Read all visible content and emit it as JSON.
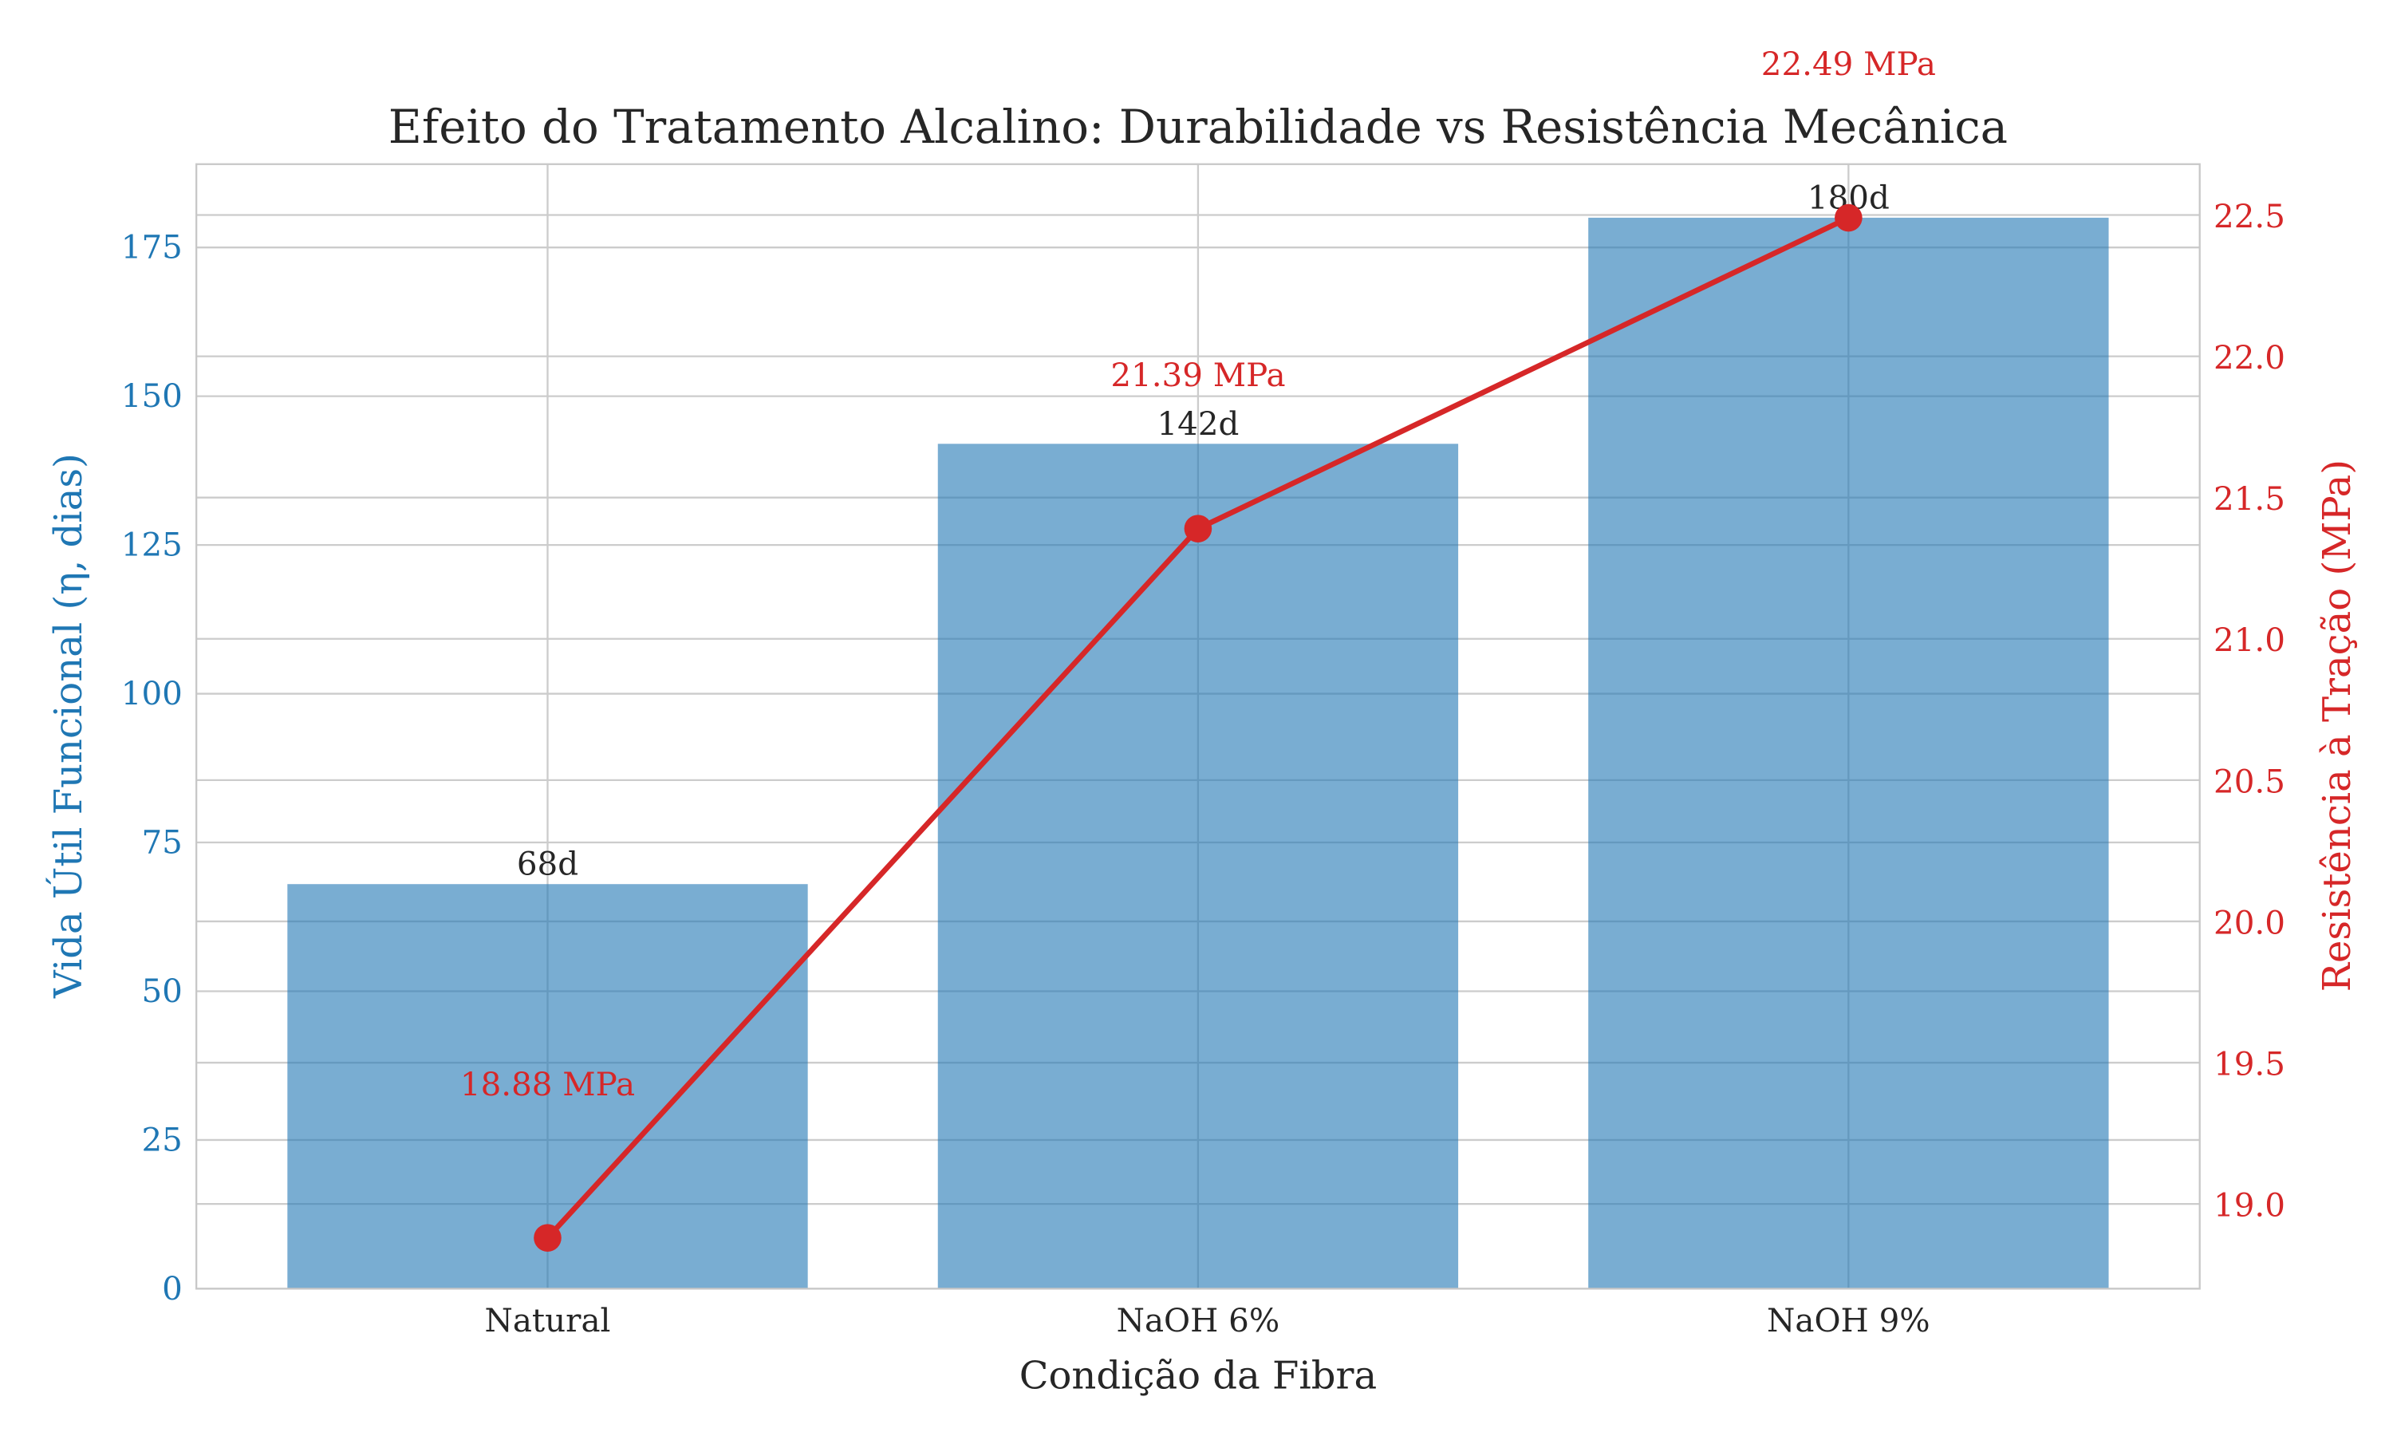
{
  "chart_data": {
    "type": "bar+line",
    "title": "Efeito do Tratamento Alcalino: Durabilidade vs Resistência Mecânica",
    "xlabel": "Condição da Fibra",
    "ylabel": "Vida Útil Funcional (η, dias)",
    "ylabel_right": "Resistência à Tração (MPa)",
    "categories": [
      "Natural",
      "NaOH 6%",
      "NaOH 9%"
    ],
    "bar_series": {
      "values": [
        68,
        142,
        180
      ],
      "labels": [
        "68d",
        "142d",
        "180d"
      ],
      "color": "#1f77b4",
      "axis": "left"
    },
    "line_series": {
      "values": [
        18.88,
        21.39,
        22.49
      ],
      "labels": [
        "18.88 MPa",
        "21.39 MPa",
        "22.49 MPa"
      ],
      "color": "#d62728",
      "marker": "circle",
      "axis": "right"
    },
    "ylim": [
      0,
      189
    ],
    "ylim_right": [
      18.7,
      22.68
    ],
    "yticks": [
      0,
      25,
      50,
      75,
      100,
      125,
      150,
      175
    ],
    "yticks_right": [
      19.0,
      19.5,
      20.0,
      20.5,
      21.0,
      21.5,
      22.0,
      22.5
    ],
    "ytick_labels_right": [
      "19.0",
      "19.5",
      "20.0",
      "20.5",
      "21.0",
      "21.5",
      "22.0",
      "22.5"
    ],
    "left_axis_color": "#1f77b4",
    "right_axis_color": "#d62728",
    "grid": true
  }
}
